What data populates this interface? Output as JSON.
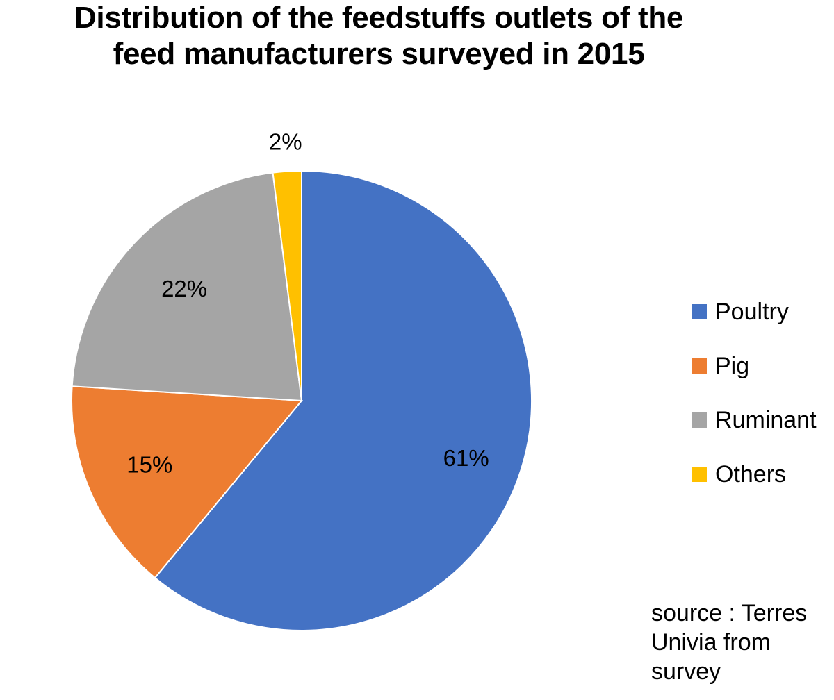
{
  "chart_data": {
    "type": "pie",
    "title": "Distribution of the feedstuffs outlets of the feed manufacturers surveyed in 2015",
    "title_lines": [
      "Distribution of the feedstuffs outlets of the",
      "feed manufacturers surveyed in 2015"
    ],
    "categories": [
      "Poultry",
      "Pig",
      "Ruminant",
      "Others"
    ],
    "values": [
      61,
      15,
      22,
      2
    ],
    "data_labels": [
      "61%",
      "15%",
      "22%",
      "2%"
    ],
    "colors": [
      "#4472C4",
      "#ED7D31",
      "#A5A5A5",
      "#FFC000"
    ],
    "start": "12 o'clock, clockwise",
    "legend_position": "right"
  },
  "source_note": "source : Terres Univia from survey"
}
